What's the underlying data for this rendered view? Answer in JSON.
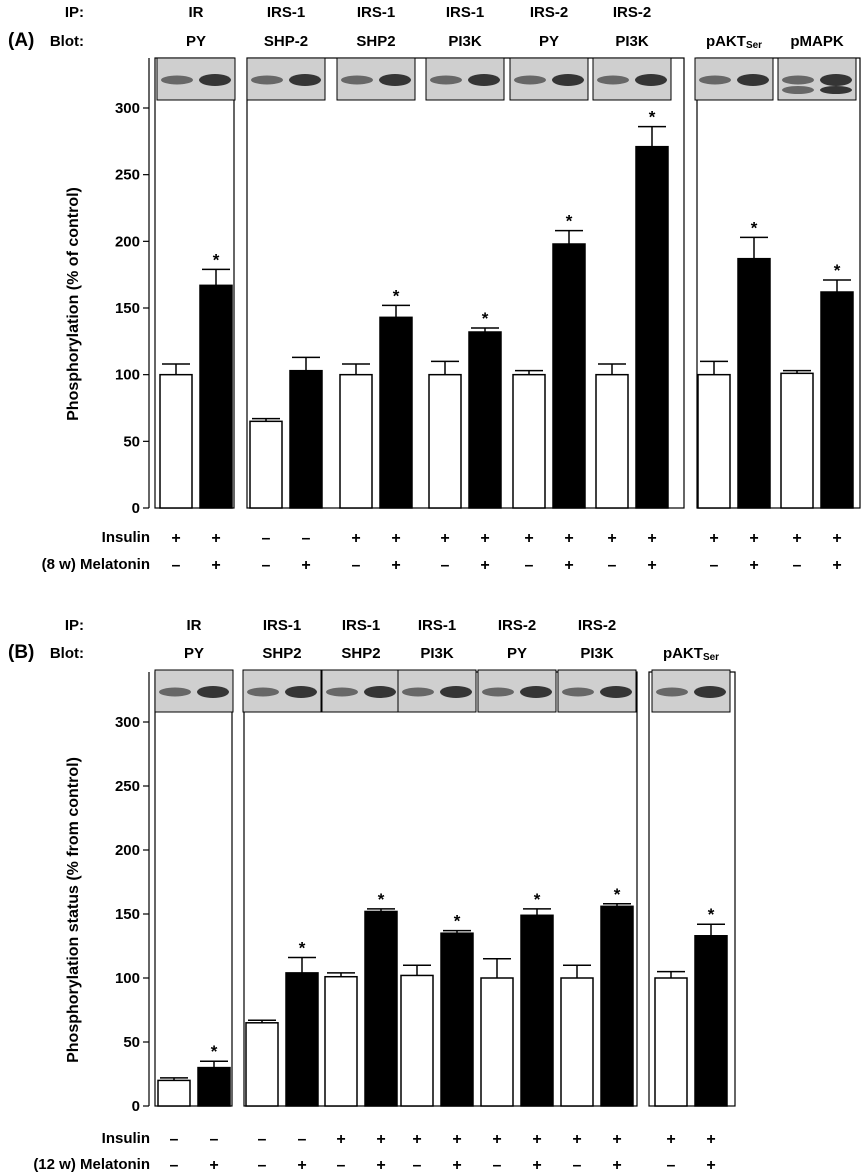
{
  "chart_data": [
    {
      "type": "bar",
      "panel_label": "(A)",
      "row_labels": {
        "ip": "IP:",
        "blot": "Blot:"
      },
      "ylabel": "Phosphorylation (% of control)",
      "ylim": [
        0,
        300
      ],
      "yticks": [
        "0",
        "50",
        "100",
        "150",
        "200",
        "250",
        "300"
      ],
      "condition_labels": {
        "insulin": "Insulin",
        "melatonin": "(8 w) Melatonin"
      },
      "groups": [
        {
          "ip": "IR",
          "blot": "PY",
          "box": 0,
          "bars": [
            {
              "value": 100,
              "error": 8,
              "fill": "white",
              "insulin": "+",
              "melatonin": "–",
              "sig": ""
            },
            {
              "value": 167,
              "error": 12,
              "fill": "black",
              "insulin": "+",
              "melatonin": "+",
              "sig": "*"
            }
          ]
        },
        {
          "ip": "IRS-1",
          "blot": "SHP-2",
          "box": 1,
          "bars": [
            {
              "value": 65,
              "error": 2,
              "fill": "white",
              "insulin": "–",
              "melatonin": "–",
              "sig": ""
            },
            {
              "value": 103,
              "error": 10,
              "fill": "black",
              "insulin": "–",
              "melatonin": "+",
              "sig": ""
            }
          ]
        },
        {
          "ip": "IRS-1",
          "blot": "SHP2",
          "box": 1,
          "bars": [
            {
              "value": 100,
              "error": 8,
              "fill": "white",
              "insulin": "+",
              "melatonin": "–",
              "sig": ""
            },
            {
              "value": 143,
              "error": 9,
              "fill": "black",
              "insulin": "+",
              "melatonin": "+",
              "sig": "*"
            }
          ]
        },
        {
          "ip": "IRS-1",
          "blot": "PI3K",
          "box": 1,
          "bars": [
            {
              "value": 100,
              "error": 10,
              "fill": "white",
              "insulin": "+",
              "melatonin": "–",
              "sig": ""
            },
            {
              "value": 132,
              "error": 3,
              "fill": "black",
              "insulin": "+",
              "melatonin": "+",
              "sig": "*"
            }
          ]
        },
        {
          "ip": "IRS-2",
          "blot": "PY",
          "box": 1,
          "bars": [
            {
              "value": 100,
              "error": 3,
              "fill": "white",
              "insulin": "+",
              "melatonin": "–",
              "sig": ""
            },
            {
              "value": 198,
              "error": 10,
              "fill": "black",
              "insulin": "+",
              "melatonin": "+",
              "sig": "*"
            }
          ]
        },
        {
          "ip": "IRS-2",
          "blot": "PI3K",
          "box": 1,
          "bars": [
            {
              "value": 100,
              "error": 8,
              "fill": "white",
              "insulin": "+",
              "melatonin": "–",
              "sig": ""
            },
            {
              "value": 271,
              "error": 15,
              "fill": "black",
              "insulin": "+",
              "melatonin": "+",
              "sig": "*"
            }
          ]
        },
        {
          "ip": "",
          "blot": "pAKTSer",
          "box": 2,
          "bars": [
            {
              "value": 100,
              "error": 10,
              "fill": "white",
              "insulin": "+",
              "melatonin": "–",
              "sig": ""
            },
            {
              "value": 187,
              "error": 16,
              "fill": "black",
              "insulin": "+",
              "melatonin": "+",
              "sig": "*"
            }
          ]
        },
        {
          "ip": "",
          "blot": "pMAPK",
          "box": 2,
          "bars": [
            {
              "value": 101,
              "error": 2,
              "fill": "white",
              "insulin": "+",
              "melatonin": "–",
              "sig": ""
            },
            {
              "value": 162,
              "error": 9,
              "fill": "black",
              "insulin": "+",
              "melatonin": "+",
              "sig": "*"
            }
          ]
        }
      ]
    },
    {
      "type": "bar",
      "panel_label": "(B)",
      "row_labels": {
        "ip": "IP:",
        "blot": "Blot:"
      },
      "ylabel": "Phosphorylation status (% from control)",
      "ylim": [
        0,
        300
      ],
      "yticks": [
        "0",
        "50",
        "100",
        "150",
        "200",
        "250",
        "300"
      ],
      "condition_labels": {
        "insulin": "Insulin",
        "melatonin": "(12 w) Melatonin"
      },
      "groups": [
        {
          "ip": "IR",
          "blot": "PY",
          "box": 0,
          "bars": [
            {
              "value": 20,
              "error": 2,
              "fill": "white",
              "insulin": "–",
              "melatonin": "–",
              "sig": ""
            },
            {
              "value": 30,
              "error": 5,
              "fill": "black",
              "insulin": "–",
              "melatonin": "+",
              "sig": "*"
            }
          ]
        },
        {
          "ip": "IRS-1",
          "blot": "SHP2",
          "box": 1,
          "bars": [
            {
              "value": 65,
              "error": 2,
              "fill": "white",
              "insulin": "–",
              "melatonin": "–",
              "sig": ""
            },
            {
              "value": 104,
              "error": 12,
              "fill": "black",
              "insulin": "–",
              "melatonin": "+",
              "sig": "*"
            }
          ]
        },
        {
          "ip": "IRS-1",
          "blot": "SHP2",
          "box": 1,
          "bars": [
            {
              "value": 101,
              "error": 3,
              "fill": "white",
              "insulin": "+",
              "melatonin": "–",
              "sig": ""
            },
            {
              "value": 152,
              "error": 2,
              "fill": "black",
              "insulin": "+",
              "melatonin": "+",
              "sig": "*"
            }
          ]
        },
        {
          "ip": "IRS-1",
          "blot": "PI3K",
          "box": 1,
          "bars": [
            {
              "value": 102,
              "error": 8,
              "fill": "white",
              "insulin": "+",
              "melatonin": "–",
              "sig": ""
            },
            {
              "value": 135,
              "error": 2,
              "fill": "black",
              "insulin": "+",
              "melatonin": "+",
              "sig": "*"
            }
          ]
        },
        {
          "ip": "IRS-2",
          "blot": "PY",
          "box": 1,
          "bars": [
            {
              "value": 100,
              "error": 15,
              "fill": "white",
              "insulin": "+",
              "melatonin": "–",
              "sig": ""
            },
            {
              "value": 149,
              "error": 5,
              "fill": "black",
              "insulin": "+",
              "melatonin": "+",
              "sig": "*"
            }
          ]
        },
        {
          "ip": "IRS-2",
          "blot": "PI3K",
          "box": 1,
          "bars": [
            {
              "value": 100,
              "error": 10,
              "fill": "white",
              "insulin": "+",
              "melatonin": "–",
              "sig": ""
            },
            {
              "value": 156,
              "error": 2,
              "fill": "black",
              "insulin": "+",
              "melatonin": "+",
              "sig": "*"
            }
          ]
        },
        {
          "ip": "",
          "blot": "pAKTSer",
          "box": 2,
          "bars": [
            {
              "value": 100,
              "error": 5,
              "fill": "white",
              "insulin": "+",
              "melatonin": "–",
              "sig": ""
            },
            {
              "value": 133,
              "error": 9,
              "fill": "black",
              "insulin": "+",
              "melatonin": "+",
              "sig": "*"
            }
          ]
        }
      ]
    }
  ]
}
